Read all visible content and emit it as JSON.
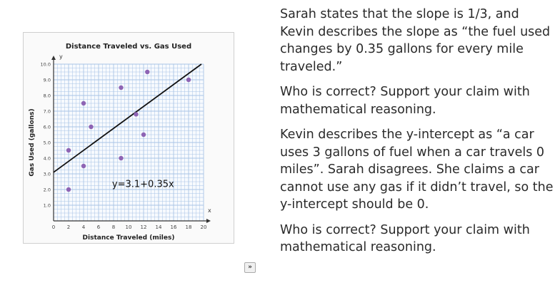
{
  "chart_data": {
    "type": "scatter",
    "title": "Distance Traveled vs. Gas Used",
    "xlabel": "Distance Traveled (miles)",
    "ylabel": "Gas Used (gallons)",
    "x_axis_letter": "x",
    "y_axis_letter": "y",
    "xlim": [
      0,
      20
    ],
    "ylim": [
      0,
      10
    ],
    "x_ticks": [
      0,
      2,
      4,
      6,
      8,
      10,
      12,
      14,
      16,
      18,
      20
    ],
    "y_ticks": [
      1.0,
      2.0,
      3.0,
      4.0,
      5.0,
      6.0,
      7.0,
      8.0,
      9.0,
      10.0
    ],
    "y_tick_labels": [
      "1.0",
      "2.0",
      "3.0",
      "4.0",
      "5.0",
      "6.0",
      "7.0",
      "8.0",
      "9.0",
      "10.0"
    ],
    "grid": true,
    "points": [
      {
        "x": 2,
        "y": 4.5
      },
      {
        "x": 2,
        "y": 2
      },
      {
        "x": 4,
        "y": 7.5
      },
      {
        "x": 4,
        "y": 3.5
      },
      {
        "x": 5,
        "y": 6
      },
      {
        "x": 9,
        "y": 8.5
      },
      {
        "x": 9,
        "y": 4
      },
      {
        "x": 11,
        "y": 6.8
      },
      {
        "x": 12,
        "y": 5.5
      },
      {
        "x": 12.5,
        "y": 9.5
      },
      {
        "x": 18,
        "y": 9
      }
    ],
    "trend_line": {
      "intercept": 3.1,
      "slope": 0.35,
      "label": "y=3.1+0.35x"
    },
    "point_color": "#8e64b4",
    "line_color": "#111111",
    "grid_color": "#a9c4e6"
  },
  "controls": {
    "expand_label": "»"
  },
  "question": {
    "paragraphs": [
      "Sarah states that the slope is 1/3, and Kevin describes the slope as “the fuel used changes by 0.35 gallons for every mile traveled.”",
      "Who is correct? Support your claim with mathematical reasoning.",
      "Kevin describes the y-intercept as “a car uses 3 gallons of fuel when a car travels 0 miles”. Sarah disagrees. She claims a car cannot use any gas if it didn’t travel, so the y-intercept should be 0.",
      "Who is correct? Support your claim with mathematical reasoning."
    ]
  }
}
